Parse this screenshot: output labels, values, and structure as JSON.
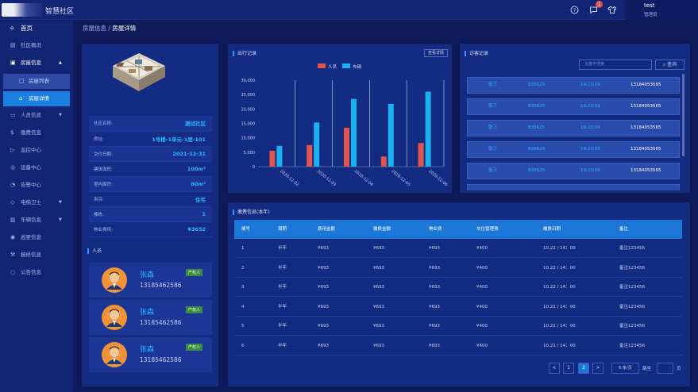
{
  "app": {
    "title": "智慧社区",
    "user_name": "test",
    "user_role": "管理员",
    "notification_count": "1"
  },
  "icons": {
    "help": "question-circle-icon",
    "message": "chat-bubble-icon",
    "shirt": "tshirt-icon"
  },
  "sidebar": {
    "items": [
      {
        "icon": "home-icon",
        "label": "首页"
      },
      {
        "icon": "overview-icon",
        "label": "社区概况"
      },
      {
        "icon": "building-icon",
        "label": "房屋信息",
        "caret": "▲"
      },
      {
        "icon": "list-icon",
        "label": "房屋列表"
      },
      {
        "icon": "house-icon",
        "label": "房屋详情"
      },
      {
        "icon": "people-icon",
        "label": "人员信息",
        "caret": "▼"
      },
      {
        "icon": "fee-icon",
        "label": "缴费信息"
      },
      {
        "icon": "camera-icon",
        "label": "监控中心"
      },
      {
        "icon": "device-icon",
        "label": "设备中心"
      },
      {
        "icon": "alarm-icon",
        "label": "告警中心"
      },
      {
        "icon": "shield-icon",
        "label": "电梯卫士",
        "caret": "▼"
      },
      {
        "icon": "car-icon",
        "label": "车辆信息",
        "caret": "▼"
      },
      {
        "icon": "visitor-icon",
        "label": "巡更信息"
      },
      {
        "icon": "repair-icon",
        "label": "报修信息"
      },
      {
        "icon": "notice-icon",
        "label": "公告信息"
      }
    ]
  },
  "breadcrumb": {
    "parent": "房屋信息",
    "sep": " / ",
    "current": "房屋详情"
  },
  "house_info": {
    "rows": [
      {
        "key": "社区名称:",
        "value": "测试社区"
      },
      {
        "key": "房址:",
        "value": "1号楼-1单元-1层-101"
      },
      {
        "key": "交付日期:",
        "value": "2021-12-31"
      },
      {
        "key": "建筑面积:",
        "value": "100m²"
      },
      {
        "key": "室内面积:",
        "value": "80m²"
      },
      {
        "key": "类目:",
        "value": "住宅"
      },
      {
        "key": "楼栋:",
        "value": "1"
      },
      {
        "key": "物业费用:",
        "value": "¥3652"
      }
    ]
  },
  "people": {
    "title": "人员",
    "items": [
      {
        "name": "张森",
        "phone": "13185462586",
        "tag": "产权人"
      },
      {
        "name": "张森",
        "phone": "13185462586",
        "tag": "产权人"
      },
      {
        "name": "张森",
        "phone": "13185462586",
        "tag": "产权人"
      }
    ]
  },
  "travel": {
    "title": "出行记录",
    "view_btn": "查看详情"
  },
  "chart_data": {
    "type": "bar",
    "categories": [
      "2020-12-02",
      "2020-12-03",
      "2020-12-04",
      "2020-12-05",
      "2020-12-06"
    ],
    "series": [
      {
        "name": "人员",
        "color": "#e05550",
        "values": [
          5500,
          7500,
          13500,
          3500,
          8200
        ]
      },
      {
        "name": "车辆",
        "color": "#19b1f0",
        "values": [
          7200,
          15300,
          23500,
          21800,
          26000
        ]
      }
    ],
    "yticks": [
      "0",
      "5,000",
      "10,000",
      "15,000",
      "20,000",
      "25,000",
      "30,000"
    ],
    "ylim": [
      0,
      30000
    ],
    "legend": "top-center",
    "grid": "vertical"
  },
  "visits": {
    "title": "访客记录",
    "search_placeholder": "关键字搜索",
    "search_btn": "查询",
    "rows": [
      {
        "name": "张三",
        "code": "B35625",
        "time": "19:23:09",
        "phone": "13184053565"
      },
      {
        "name": "张三",
        "code": "B35625",
        "time": "19:23:09",
        "phone": "13184053565"
      },
      {
        "name": "张三",
        "code": "B35625",
        "time": "19:23:09",
        "phone": "13184053565"
      },
      {
        "name": "张三",
        "code": "B35625",
        "time": "19:23:09",
        "phone": "13184053565"
      },
      {
        "name": "张三",
        "code": "B35625",
        "time": "19:23:09",
        "phone": "13184053565"
      }
    ]
  },
  "fees": {
    "title": "缴费信息(本年)",
    "headers": [
      "编号",
      "周期",
      "费用金额",
      "缴费金额",
      "物业费",
      "车位管理费",
      "缴费日期",
      "备注"
    ],
    "rows": [
      [
        "1",
        "半年",
        "¥693",
        "¥693",
        "¥693",
        "¥400",
        "10.22 / 14：00",
        "备注123456"
      ],
      [
        "2",
        "半年",
        "¥693",
        "¥693",
        "¥693",
        "¥400",
        "10.22 / 14：00",
        "备注123456"
      ],
      [
        "3",
        "半年",
        "¥693",
        "¥693",
        "¥693",
        "¥400",
        "10.22 / 14：00",
        "备注123456"
      ],
      [
        "4",
        "半年",
        "¥693",
        "¥693",
        "¥693",
        "¥400",
        "10.22 / 14：00",
        "备注123456"
      ],
      [
        "5",
        "半年",
        "¥693",
        "¥693",
        "¥693",
        "¥400",
        "10.22 / 14：00",
        "备注123456"
      ],
      [
        "6",
        "半年",
        "¥693",
        "¥693",
        "¥693",
        "¥400",
        "10.22 / 14：00",
        "备注123456"
      ]
    ]
  },
  "pagination": {
    "prev": "<",
    "pages": [
      "1",
      "2"
    ],
    "current_page": "2",
    "next": ">",
    "page_size": "6 条/页",
    "goto_label": "跳至",
    "page_label": "页"
  }
}
